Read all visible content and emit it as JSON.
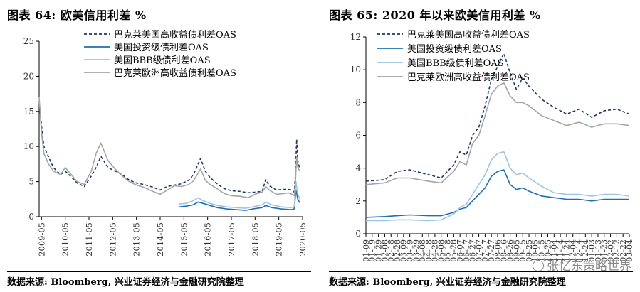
{
  "watermark": "张忆东策略世界",
  "chart_data": [
    {
      "type": "line",
      "title": "图表 64:  欧美信用利差  %",
      "source": "数据来源:  Bloomberg,  兴业证券经济与金融研究院整理",
      "ylim": [
        0,
        25
      ],
      "yticks": [
        0,
        5,
        10,
        15,
        20,
        25
      ],
      "x_tick_labels": [
        "2009-05",
        "2010-05",
        "2011-05",
        "2012-05",
        "2013-05",
        "2014-05",
        "2015-05",
        "2016-05",
        "2017-05",
        "2018-05",
        "2019-05",
        "2020-05"
      ],
      "xlim": [
        2009.4,
        2020.5
      ],
      "legend": "top-left",
      "series": [
        {
          "name": "巴克莱美国高收益债利差OAS",
          "color": "#1f3864",
          "dash": "4,3",
          "x": [
            2009.4,
            2009.5,
            2009.6,
            2009.8,
            2010.0,
            2010.3,
            2010.5,
            2010.8,
            2011.0,
            2011.3,
            2011.6,
            2011.8,
            2012.0,
            2012.3,
            2012.6,
            2012.9,
            2013.2,
            2013.5,
            2013.8,
            2014.2,
            2014.5,
            2014.8,
            2015.1,
            2015.4,
            2015.7,
            2015.9,
            2016.1,
            2016.2,
            2016.4,
            2016.6,
            2016.9,
            2017.2,
            2017.5,
            2017.9,
            2018.2,
            2018.5,
            2018.8,
            2018.95,
            2019.1,
            2019.4,
            2019.7,
            2019.9,
            2020.05,
            2020.15,
            2020.2,
            2020.25,
            2020.3,
            2020.38
          ],
          "y": [
            16.5,
            13,
            10,
            8.5,
            7,
            6,
            6.5,
            5.5,
            4.8,
            4.3,
            5.8,
            7,
            8.6,
            7,
            6.5,
            6,
            5.2,
            4.8,
            4.6,
            4.2,
            3.8,
            4.3,
            4.5,
            4.7,
            5.2,
            6,
            7.5,
            8.3,
            6.5,
            5.6,
            4.7,
            4.0,
            3.7,
            3.6,
            3.4,
            3.5,
            3.6,
            5.3,
            4.4,
            3.8,
            3.9,
            3.9,
            3.8,
            3.5,
            6,
            11,
            8,
            6.8
          ]
        },
        {
          "name": "美国投资级债利差OAS",
          "color": "#1f6fb2",
          "dash": "",
          "x": [
            2015.3,
            2015.6,
            2015.9,
            2016.1,
            2016.3,
            2016.6,
            2016.9,
            2017.3,
            2017.7,
            2018.1,
            2018.4,
            2018.8,
            2018.95,
            2019.2,
            2019.6,
            2020.0,
            2020.15,
            2020.22,
            2020.3,
            2020.38
          ],
          "y": [
            1.4,
            1.5,
            1.7,
            2.1,
            1.9,
            1.6,
            1.3,
            1.1,
            1.0,
            0.9,
            1.1,
            1.3,
            1.6,
            1.3,
            1.1,
            1.0,
            1.1,
            3.8,
            2.5,
            2.0
          ]
        },
        {
          "name": "美国BBB级债利差OAS",
          "color": "#9dc3e6",
          "dash": "",
          "x": [
            2015.3,
            2015.6,
            2015.9,
            2016.1,
            2016.3,
            2016.6,
            2016.9,
            2017.3,
            2017.7,
            2018.1,
            2018.4,
            2018.8,
            2018.95,
            2019.2,
            2019.6,
            2020.0,
            2020.15,
            2020.22,
            2020.3,
            2020.38
          ],
          "y": [
            1.8,
            1.9,
            2.3,
            2.7,
            2.3,
            1.9,
            1.6,
            1.4,
            1.3,
            1.2,
            1.4,
            1.7,
            2.1,
            1.7,
            1.4,
            1.3,
            1.4,
            5.0,
            3.2,
            2.5
          ]
        },
        {
          "name": "巴克莱欧洲高收益债利差OAS",
          "color": "#a5a5a5",
          "dash": "",
          "x": [
            2009.4,
            2009.5,
            2009.6,
            2009.8,
            2010.0,
            2010.3,
            2010.5,
            2010.8,
            2011.0,
            2011.3,
            2011.6,
            2011.8,
            2012.0,
            2012.3,
            2012.6,
            2012.9,
            2013.2,
            2013.5,
            2013.8,
            2014.2,
            2014.5,
            2014.8,
            2015.1,
            2015.4,
            2015.7,
            2015.9,
            2016.1,
            2016.2,
            2016.4,
            2016.6,
            2016.9,
            2017.2,
            2017.5,
            2017.9,
            2018.2,
            2018.5,
            2018.8,
            2018.95,
            2019.1,
            2019.4,
            2019.7,
            2019.9,
            2020.05,
            2020.15,
            2020.2,
            2020.25,
            2020.3,
            2020.38
          ],
          "y": [
            17,
            12,
            9,
            7.5,
            6.5,
            6,
            7,
            5.8,
            5,
            4.6,
            6.5,
            9,
            10.5,
            8,
            6.8,
            5.8,
            5,
            4.5,
            4.2,
            3.6,
            3.2,
            3.8,
            4.4,
            4.3,
            4.6,
            5.1,
            6.2,
            6.8,
            5.2,
            4.6,
            4.0,
            3.3,
            3.0,
            2.9,
            2.7,
            3.2,
            3.5,
            4.3,
            3.8,
            3.2,
            3.3,
            3.4,
            3.2,
            3.0,
            5,
            8.5,
            7,
            6.5
          ]
        }
      ]
    },
    {
      "type": "line",
      "title": "图表 65:  2020 年以来欧美信用利差  %",
      "source": "数据来源:  Bloomberg,  兴业证券经济与金融研究院整理",
      "ylim": [
        0,
        12
      ],
      "yticks": [
        0,
        2,
        4,
        6,
        8,
        10,
        12
      ],
      "x_tick_labels": [
        "01-09",
        "01-19",
        "01-29",
        "02-08",
        "02-18",
        "02-28",
        "03-09",
        "03-19",
        "03-29",
        "04-08",
        "04-18",
        "04-28",
        "05-08",
        "05-18",
        "05-28",
        "06-07",
        "06-17",
        "06-27",
        "07-07",
        "07-17",
        "07-27",
        "08-06",
        "08-16",
        "08-26",
        "09-05",
        "09-15",
        "09-25",
        "10-05",
        "10-15",
        "10-25",
        "11-04",
        "11-14",
        "11-24",
        "12-04",
        "12-14",
        "12-24",
        "01-03",
        "01-13",
        "01-23",
        "02-02",
        "02-12",
        "02-22",
        "03-04"
      ],
      "legend": "top-left",
      "series": [
        {
          "name": "巴克莱美国高收益债利差OAS",
          "color": "#1f3864",
          "dash": "4,3",
          "x": [
            0,
            3,
            5,
            7,
            10,
            12,
            14,
            15,
            16,
            17,
            18,
            19,
            20,
            21,
            22,
            23,
            24,
            25,
            26,
            28,
            30,
            32,
            34,
            36,
            38,
            40,
            42
          ],
          "y": [
            3.2,
            3.3,
            3.8,
            3.9,
            3.6,
            3.4,
            4.2,
            5.0,
            4.8,
            6.0,
            6.5,
            7.8,
            9.4,
            10.2,
            11.0,
            9.8,
            8.8,
            9.5,
            9.0,
            8.2,
            7.7,
            7.3,
            7.6,
            7.1,
            7.5,
            7.6,
            7.3
          ]
        },
        {
          "name": "美国投资级债利差OAS",
          "color": "#1f6fb2",
          "dash": "",
          "x": [
            0,
            3,
            5,
            7,
            10,
            12,
            14,
            15,
            16,
            17,
            18,
            19,
            20,
            21,
            22,
            23,
            24,
            25,
            26,
            28,
            30,
            32,
            34,
            36,
            38,
            40,
            42
          ],
          "y": [
            1.0,
            1.05,
            1.1,
            1.15,
            1.1,
            1.1,
            1.3,
            1.5,
            1.6,
            2.0,
            2.4,
            2.8,
            3.5,
            3.8,
            3.9,
            3.0,
            2.7,
            2.8,
            2.6,
            2.3,
            2.2,
            2.1,
            2.1,
            2.0,
            2.1,
            2.1,
            2.1
          ]
        },
        {
          "name": "美国BBB级债利差OAS",
          "color": "#9dc3e6",
          "dash": "",
          "x": [
            0,
            3,
            5,
            7,
            10,
            12,
            14,
            15,
            16,
            17,
            18,
            19,
            20,
            21,
            22,
            23,
            24,
            25,
            26,
            28,
            30,
            32,
            34,
            36,
            38,
            40,
            42
          ],
          "y": [
            0.8,
            0.8,
            0.85,
            0.85,
            0.8,
            0.85,
            1.2,
            1.6,
            1.8,
            2.4,
            3.0,
            3.6,
            4.5,
            4.9,
            5.0,
            4.0,
            3.6,
            3.7,
            3.4,
            2.9,
            2.5,
            2.4,
            2.4,
            2.3,
            2.4,
            2.4,
            2.3
          ]
        },
        {
          "name": "巴克莱欧洲高收益债利差OAS",
          "color": "#a5a5a5",
          "dash": "",
          "x": [
            0,
            3,
            5,
            7,
            10,
            12,
            14,
            15,
            16,
            17,
            18,
            19,
            20,
            21,
            22,
            23,
            24,
            25,
            26,
            28,
            30,
            32,
            34,
            36,
            38,
            40,
            42
          ],
          "y": [
            3.0,
            3.1,
            3.4,
            3.4,
            3.2,
            3.1,
            3.8,
            4.4,
            4.2,
            5.5,
            6.0,
            7.2,
            8.5,
            9.0,
            9.2,
            8.4,
            8.0,
            8.0,
            7.8,
            7.2,
            6.9,
            6.6,
            6.8,
            6.5,
            6.7,
            6.7,
            6.6
          ]
        }
      ]
    }
  ]
}
